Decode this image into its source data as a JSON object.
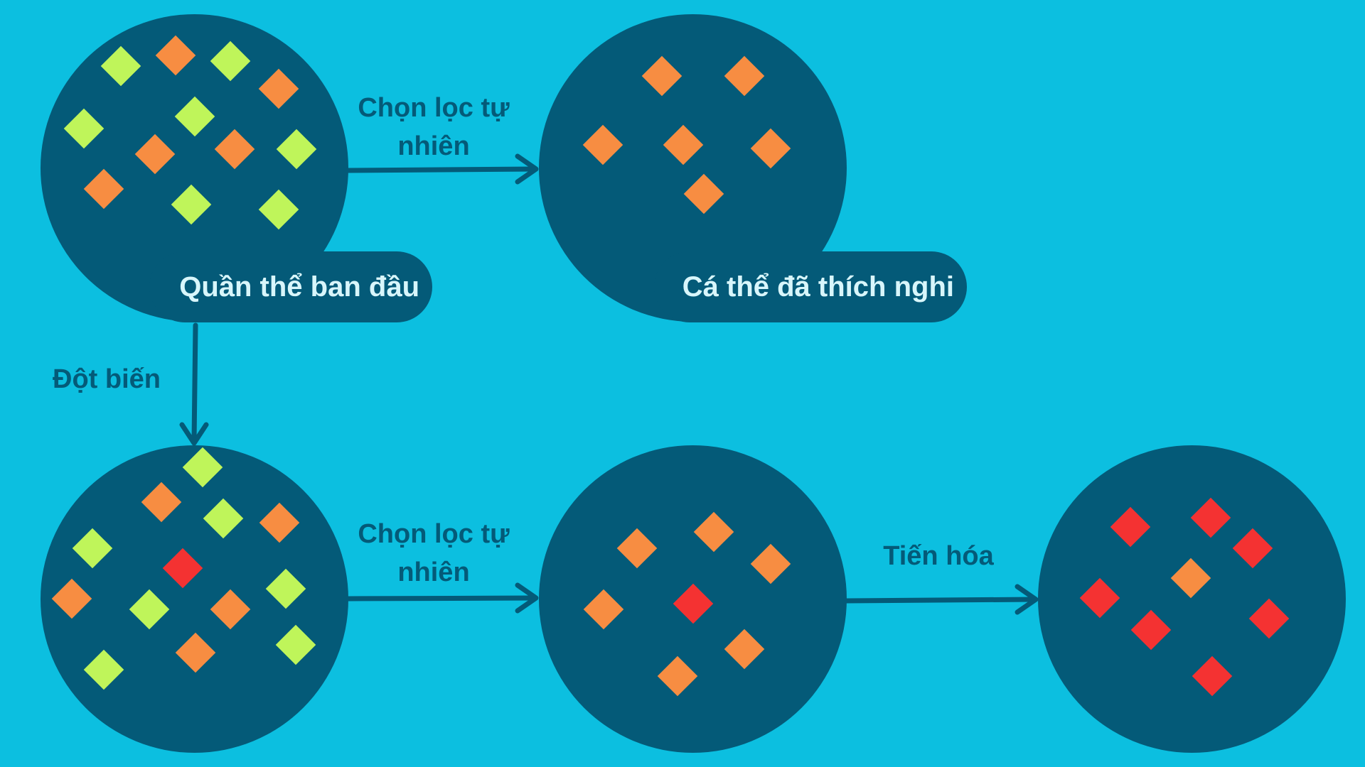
{
  "colors": {
    "background": "#0cbfe0",
    "node": "#045a78",
    "green": "#bff55a",
    "orange": "#f78d42",
    "red": "#f43232"
  },
  "nodes": {
    "initial_population": {
      "label": "Quần thể ban đầu",
      "items": [
        "green",
        "orange",
        "green",
        "orange",
        "green",
        "green",
        "orange",
        "orange",
        "green",
        "orange",
        "green",
        "green"
      ]
    },
    "adapted": {
      "label": "Cá thể đã thích nghi",
      "items": [
        "orange",
        "orange",
        "orange",
        "orange",
        "orange",
        "orange"
      ]
    },
    "mutated": {
      "items": [
        "green",
        "orange",
        "green",
        "orange",
        "green",
        "red",
        "orange",
        "green",
        "orange",
        "green",
        "orange",
        "green",
        "green"
      ]
    },
    "selected": {
      "items": [
        "orange",
        "orange",
        "orange",
        "orange",
        "red",
        "orange",
        "orange"
      ]
    },
    "evolved": {
      "items": [
        "red",
        "red",
        "red",
        "orange",
        "red",
        "red",
        "red",
        "red"
      ]
    }
  },
  "edges": {
    "selection_top": "Chọn lọc tự nhiên",
    "mutation": "Đột biến",
    "selection_bottom": "Chọn lọc tự nhiên",
    "evolution": "Tiến hóa"
  }
}
